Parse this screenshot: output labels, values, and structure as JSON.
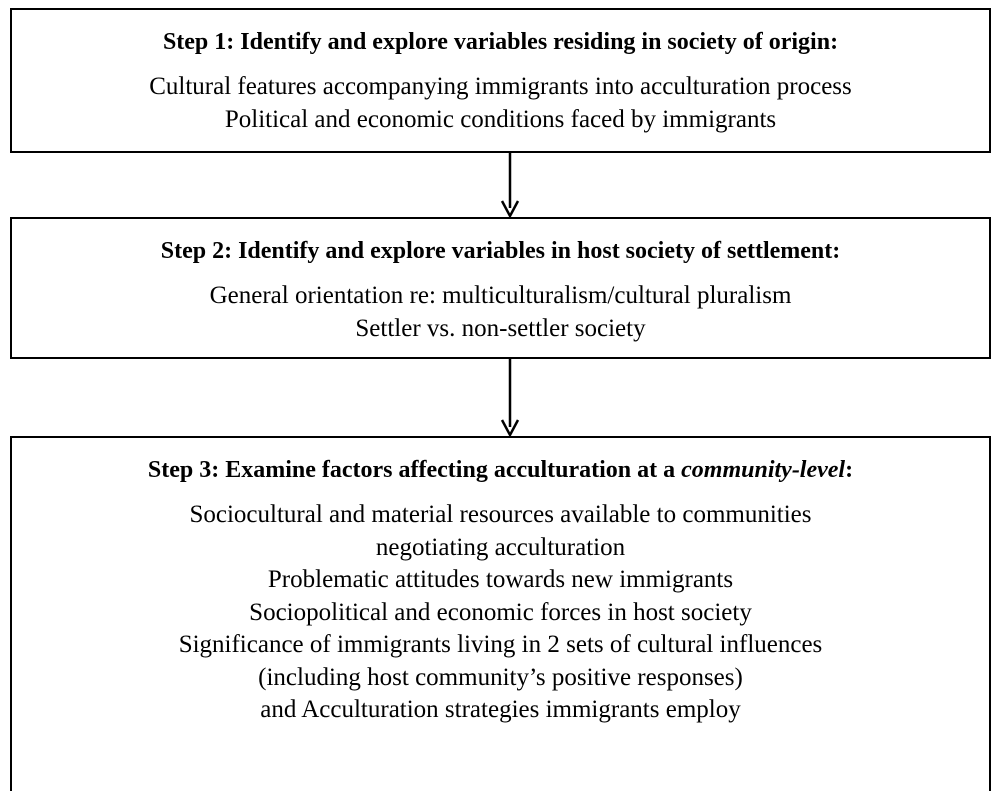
{
  "steps": [
    {
      "title": "Step 1: Identify and explore variables residing in society of origin:",
      "lines": [
        "Cultural features accompanying immigrants into acculturation process",
        "Political and economic conditions faced by immigrants"
      ]
    },
    {
      "title": "Step 2: Identify and explore variables in host society of settlement:",
      "lines": [
        "General orientation re: multiculturalism/cultural pluralism",
        "Settler vs. non-settler society"
      ]
    },
    {
      "title_before": "Step 3: Examine factors affecting acculturation at a ",
      "title_italic": "community-level",
      "title_after": ":",
      "lines": [
        "Sociocultural and material resources available to communities",
        "negotiating acculturation",
        "Problematic attitudes towards new immigrants",
        "Sociopolitical and economic forces in host society",
        "Significance of immigrants living in 2 sets of cultural influences",
        "(including host community’s positive responses)",
        "and Acculturation strategies immigrants employ"
      ]
    }
  ]
}
